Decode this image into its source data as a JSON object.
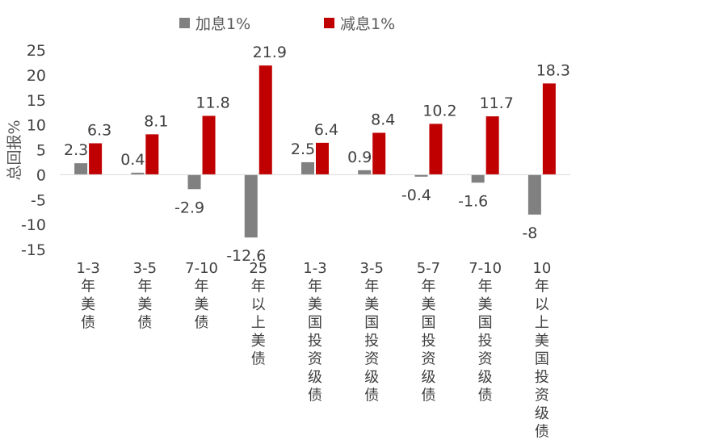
{
  "chart_data": {
    "type": "bar",
    "title": "",
    "xlabel": "",
    "ylabel": "总回报%",
    "ylim": [
      -15,
      25
    ],
    "yticks": [
      25,
      20,
      15,
      10,
      5,
      0,
      -5,
      -10,
      -15
    ],
    "grid": false,
    "legend_position": "top",
    "categories": [
      "1-3年美债",
      "3-5年美债",
      "7-10年美债",
      "25年以上美债",
      "1-3年美国投资级债",
      "3-5年美国投资级债",
      "5-7年美国投资级债",
      "7-10年美国投资级债",
      "10年以上美国投资级债"
    ],
    "series": [
      {
        "name": "加息1%",
        "color": "#808080",
        "values": [
          2.3,
          0.4,
          -2.9,
          -12.6,
          2.5,
          0.9,
          -0.4,
          -1.6,
          -8
        ]
      },
      {
        "name": "减息1%",
        "color": "#C00000",
        "values": [
          6.3,
          8.1,
          11.8,
          21.9,
          6.4,
          8.4,
          10.2,
          11.7,
          18.3
        ]
      }
    ]
  }
}
